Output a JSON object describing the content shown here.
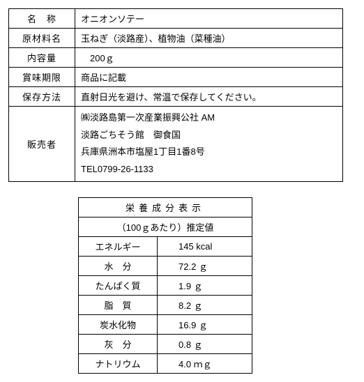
{
  "product": {
    "rows": [
      {
        "label": "名　称",
        "value": "オニオンソテー"
      },
      {
        "label": "原材料名",
        "value": "玉ねぎ（淡路産）、植物油（菜種油）"
      },
      {
        "label": "内容量",
        "value": "　200ｇ"
      },
      {
        "label": "賞味期限",
        "value": "商品に記載"
      },
      {
        "label": "保存方法",
        "value": "直射日光を避け、常温で保存してください。"
      }
    ],
    "seller_label": "販売者",
    "seller_lines": [
      "㈱淡路島第一次産業振興公社 AM",
      "淡路ごちそう館　御食国",
      "兵庫県洲本市塩屋1丁目1番8号",
      "TEL0799-26-1133"
    ]
  },
  "nutrition": {
    "title": "栄養成分表示",
    "subtitle": "（100ｇあたり）推定値",
    "rows": [
      {
        "label": "エネルギー",
        "value": "145 kcal"
      },
      {
        "label": "水　分",
        "value": "72.2 ｇ"
      },
      {
        "label": "たんぱく質",
        "value": "1.9 ｇ"
      },
      {
        "label": "脂　質",
        "value": "8.2 ｇ"
      },
      {
        "label": "炭水化物",
        "value": "16.9 ｇ"
      },
      {
        "label": "灰　分",
        "value": "0.8 ｇ"
      },
      {
        "label": "ナトリウム",
        "value": "4.0 ｍｇ"
      }
    ]
  }
}
